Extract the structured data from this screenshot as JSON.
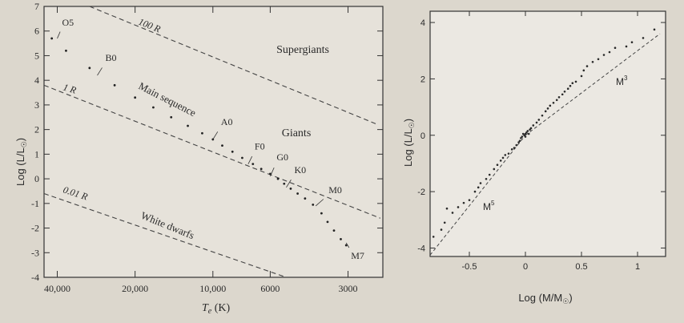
{
  "chart_data": [
    {
      "type": "scatter",
      "xlabel_main": "T",
      "xlabel_sub": "e",
      "xlabel_unit": " (K)",
      "ylabel": "Log (L/L",
      "ylabel_sub": "☉",
      "ylabel_close": ")",
      "x_axis": "log temperature, decreasing to the right",
      "xlim": [
        45000,
        2200
      ],
      "ylim": [
        -4,
        7
      ],
      "yticks": [
        -4,
        -3,
        -2,
        -1,
        0,
        1,
        2,
        3,
        4,
        5,
        6,
        7
      ],
      "xticks": [
        {
          "value": 40000,
          "label": "40,000"
        },
        {
          "value": 20000,
          "label": "20,000"
        },
        {
          "value": 10000,
          "label": "10,000"
        },
        {
          "value": 6000,
          "label": "6000"
        },
        {
          "value": 3000,
          "label": "3000"
        }
      ],
      "radius_lines": [
        {
          "label": "100 R",
          "points": [
            [
              30000,
              7.0
            ],
            [
              2300,
              2.2
            ]
          ]
        },
        {
          "label": "1 R",
          "points": [
            [
              45000,
              3.8
            ],
            [
              2250,
              -1.6
            ]
          ]
        },
        {
          "label": "0.01 R",
          "points": [
            [
              45000,
              -0.6
            ],
            [
              5200,
              -4.0
            ]
          ]
        }
      ],
      "main_sequence": {
        "label": "Main sequence",
        "points": [
          [
            42000,
            5.7
          ],
          [
            37000,
            5.2
          ],
          [
            30000,
            4.5
          ],
          [
            24000,
            3.8
          ],
          [
            20000,
            3.3
          ],
          [
            17000,
            2.9
          ],
          [
            14500,
            2.5
          ],
          [
            12500,
            2.15
          ],
          [
            11000,
            1.85
          ],
          [
            10000,
            1.6
          ],
          [
            9200,
            1.35
          ],
          [
            8400,
            1.1
          ],
          [
            7700,
            0.85
          ],
          [
            7000,
            0.6
          ],
          [
            6500,
            0.4
          ],
          [
            6000,
            0.2
          ],
          [
            5600,
            0.0
          ],
          [
            5300,
            -0.2
          ],
          [
            5000,
            -0.4
          ],
          [
            4700,
            -0.6
          ],
          [
            4400,
            -0.8
          ],
          [
            4100,
            -1.05
          ],
          [
            3800,
            -1.4
          ],
          [
            3600,
            -1.75
          ],
          [
            3400,
            -2.1
          ],
          [
            3200,
            -2.45
          ],
          [
            3050,
            -2.7
          ]
        ]
      },
      "spectral_types": [
        {
          "label": "O5",
          "temp": 40000,
          "lum": 5.7
        },
        {
          "label": "B0",
          "temp": 28000,
          "lum": 4.2
        },
        {
          "label": "A0",
          "temp": 10000,
          "lum": 1.6
        },
        {
          "label": "F0",
          "temp": 7300,
          "lum": 0.6
        },
        {
          "label": "G0",
          "temp": 6000,
          "lum": 0.1
        },
        {
          "label": "K0",
          "temp": 5200,
          "lum": -0.35
        },
        {
          "label": "M0",
          "temp": 4000,
          "lum": -1.1
        },
        {
          "label": "M7",
          "temp": 3050,
          "lum": -2.6
        }
      ],
      "annotations": {
        "supergiants": "Supergiants",
        "giants": "Giants",
        "white_dwarfs": "White dwarfs"
      }
    },
    {
      "type": "scatter",
      "xlabel": "Log (M/M",
      "xlabel_sub": "☉",
      "xlabel_close": ")",
      "ylabel": "Log (L/L",
      "ylabel_sub": "☉",
      "ylabel_close": ")",
      "xlim": [
        -0.85,
        1.25
      ],
      "ylim": [
        -4.3,
        4.4
      ],
      "xticks": [
        {
          "value": -0.5,
          "label": "-0.5"
        },
        {
          "value": 0,
          "label": "0"
        },
        {
          "value": 0.5,
          "label": "0.5"
        },
        {
          "value": 1,
          "label": "1"
        }
      ],
      "yticks": [
        {
          "value": -4,
          "label": "-4"
        },
        {
          "value": -2,
          "label": "-2"
        },
        {
          "value": 0,
          "label": "0"
        },
        {
          "value": 2,
          "label": "2"
        },
        {
          "value": 4,
          "label": "4"
        }
      ],
      "fit_lines": [
        {
          "label": "M",
          "power": "5",
          "points": [
            [
              -0.85,
              -4.25
            ],
            [
              0.0,
              0.0
            ]
          ]
        },
        {
          "label": "M",
          "power": "3",
          "points": [
            [
              0.0,
              0.0
            ],
            [
              1.2,
              3.6
            ]
          ]
        }
      ],
      "points": [
        [
          -0.82,
          -3.6
        ],
        [
          -0.75,
          -3.35
        ],
        [
          -0.72,
          -3.1
        ],
        [
          -0.7,
          -2.6
        ],
        [
          -0.65,
          -2.75
        ],
        [
          -0.6,
          -2.55
        ],
        [
          -0.55,
          -2.4
        ],
        [
          -0.5,
          -2.3
        ],
        [
          -0.45,
          -2.0
        ],
        [
          -0.42,
          -1.85
        ],
        [
          -0.4,
          -1.7
        ],
        [
          -0.35,
          -1.55
        ],
        [
          -0.32,
          -1.4
        ],
        [
          -0.28,
          -1.2
        ],
        [
          -0.25,
          -1.05
        ],
        [
          -0.22,
          -0.9
        ],
        [
          -0.2,
          -0.8
        ],
        [
          -0.18,
          -0.7
        ],
        [
          -0.15,
          -0.65
        ],
        [
          -0.12,
          -0.5
        ],
        [
          -0.1,
          -0.45
        ],
        [
          -0.08,
          -0.35
        ],
        [
          -0.06,
          -0.25
        ],
        [
          -0.05,
          -0.2
        ],
        [
          -0.04,
          -0.1
        ],
        [
          -0.03,
          -0.05
        ],
        [
          -0.02,
          0.05
        ],
        [
          -0.01,
          0.0
        ],
        [
          0.0,
          0.05
        ],
        [
          0.0,
          -0.05
        ],
        [
          0.01,
          0.1
        ],
        [
          0.02,
          0.15
        ],
        [
          0.03,
          0.05
        ],
        [
          0.04,
          0.2
        ],
        [
          0.05,
          0.25
        ],
        [
          0.07,
          0.35
        ],
        [
          0.1,
          0.45
        ],
        [
          0.12,
          0.55
        ],
        [
          0.15,
          0.7
        ],
        [
          0.18,
          0.85
        ],
        [
          0.2,
          0.95
        ],
        [
          0.22,
          1.05
        ],
        [
          0.25,
          1.15
        ],
        [
          0.28,
          1.25
        ],
        [
          0.3,
          1.35
        ],
        [
          0.33,
          1.45
        ],
        [
          0.35,
          1.55
        ],
        [
          0.38,
          1.65
        ],
        [
          0.4,
          1.75
        ],
        [
          0.42,
          1.85
        ],
        [
          0.45,
          1.9
        ],
        [
          0.5,
          2.1
        ],
        [
          0.52,
          2.3
        ],
        [
          0.55,
          2.45
        ],
        [
          0.6,
          2.6
        ],
        [
          0.65,
          2.7
        ],
        [
          0.7,
          2.85
        ],
        [
          0.75,
          2.95
        ],
        [
          0.8,
          3.1
        ],
        [
          0.9,
          3.15
        ],
        [
          0.95,
          3.3
        ],
        [
          1.05,
          3.45
        ],
        [
          1.15,
          3.75
        ]
      ]
    }
  ]
}
